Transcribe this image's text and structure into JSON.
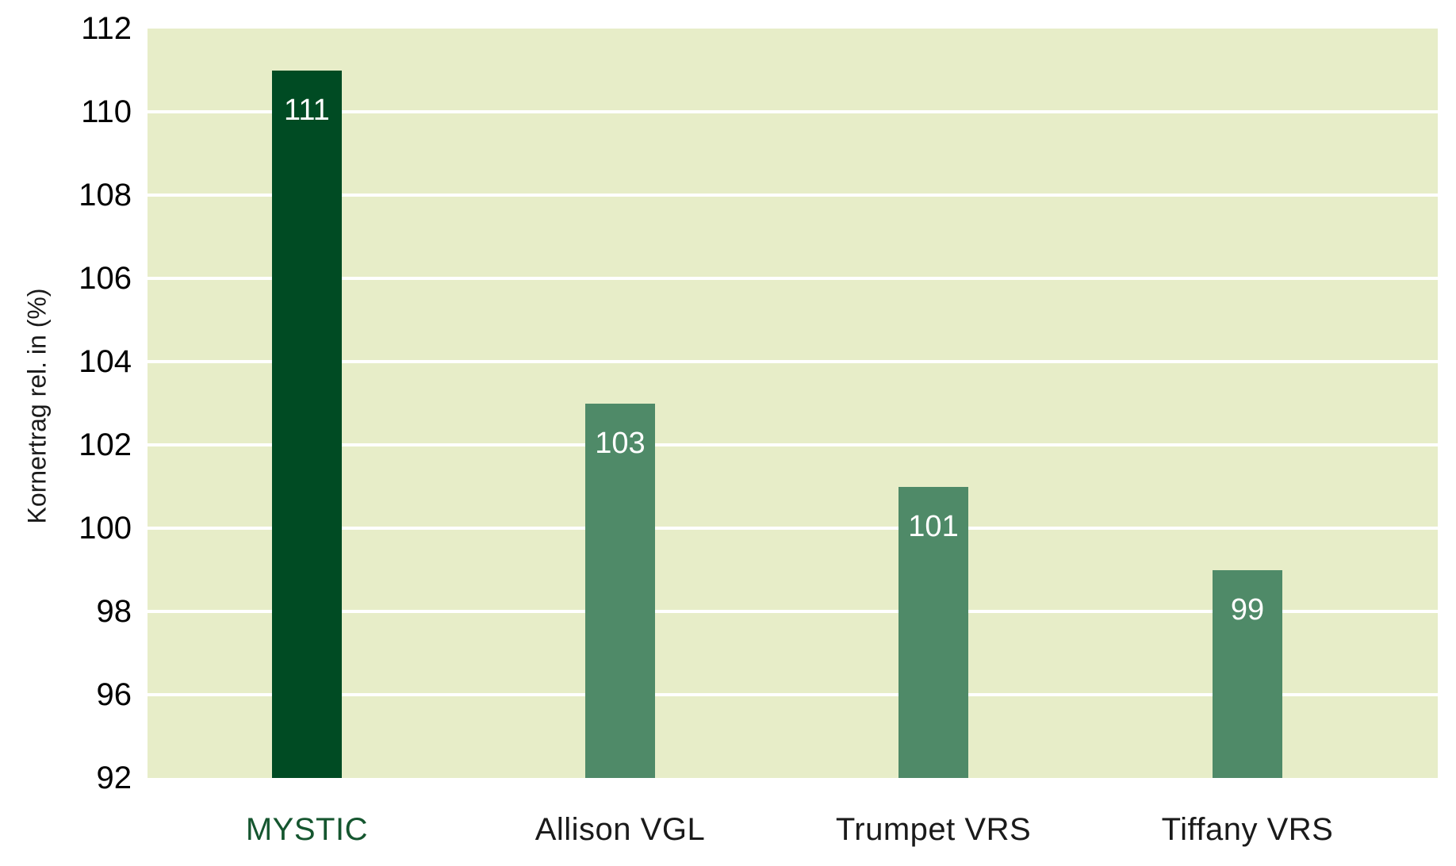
{
  "chart_data": {
    "type": "bar",
    "title": "",
    "ylabel": "Kornertrag rel. in (%)",
    "xlabel": "",
    "categories": [
      "MYSTIC",
      "Allison VGL",
      "Trumpet VRS",
      "Tiffany VRS"
    ],
    "values": [
      111,
      103,
      101,
      99
    ],
    "value_labels": [
      "111",
      "103",
      "101",
      "99"
    ],
    "y_tick_labels": [
      "112",
      "110",
      "108",
      "106",
      "104",
      "102",
      "100",
      "98",
      "96",
      "92"
    ],
    "axis_top_value": 112,
    "axis_bottom_value": 94,
    "grid": "horizontal-white",
    "legend_position": "none",
    "colors": {
      "plot_background": "#E7EDC8",
      "gridline": "#FFFFFF",
      "bar_mystic": "#004B23",
      "bar_other": "#4F8A68",
      "value_label_text": "#FFFFFF",
      "category_label_mystic": "#15562F",
      "category_label_other": "#1A1A1A",
      "tick_label_text": "#000000",
      "axis_title_text": "#1A1A1A",
      "page_background": "#FFFFFF"
    }
  }
}
